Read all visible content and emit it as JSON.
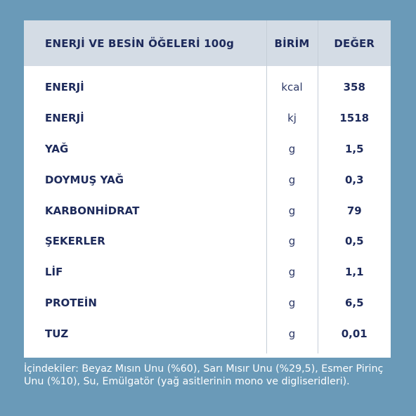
{
  "table": {
    "headers": {
      "name": "ENERJİ VE BESİN ÖĞELERİ 100g",
      "unit": "BİRİM",
      "value": "DEĞER"
    },
    "rows": [
      {
        "name": "ENERJİ",
        "unit": "kcal",
        "value": "358"
      },
      {
        "name": "ENERJİ",
        "unit": "kj",
        "value": "1518"
      },
      {
        "name": "YAĞ",
        "unit": "g",
        "value": "1,5"
      },
      {
        "name": "DOYMUŞ YAĞ",
        "unit": "g",
        "value": "0,3"
      },
      {
        "name": "KARBONHİDRAT",
        "unit": "g",
        "value": "79"
      },
      {
        "name": "ŞEKERLER",
        "unit": "g",
        "value": "0,5"
      },
      {
        "name": "LİF",
        "unit": "g",
        "value": "1,1"
      },
      {
        "name": "PROTEİN",
        "unit": "g",
        "value": "6,5"
      },
      {
        "name": "TUZ",
        "unit": "g",
        "value": "0,01"
      }
    ]
  },
  "ingredients": "İçindekiler: Beyaz Mısın Unu (%60), Sarı Mısır Unu (%29,5), Esmer Pirinç Unu (%10), Su, Emülgatör (yağ asitlerinin mono ve digliseridleri).",
  "colors": {
    "background": "#6a9ab8",
    "header_background": "#d4dce5",
    "text": "#1d2a5b"
  }
}
